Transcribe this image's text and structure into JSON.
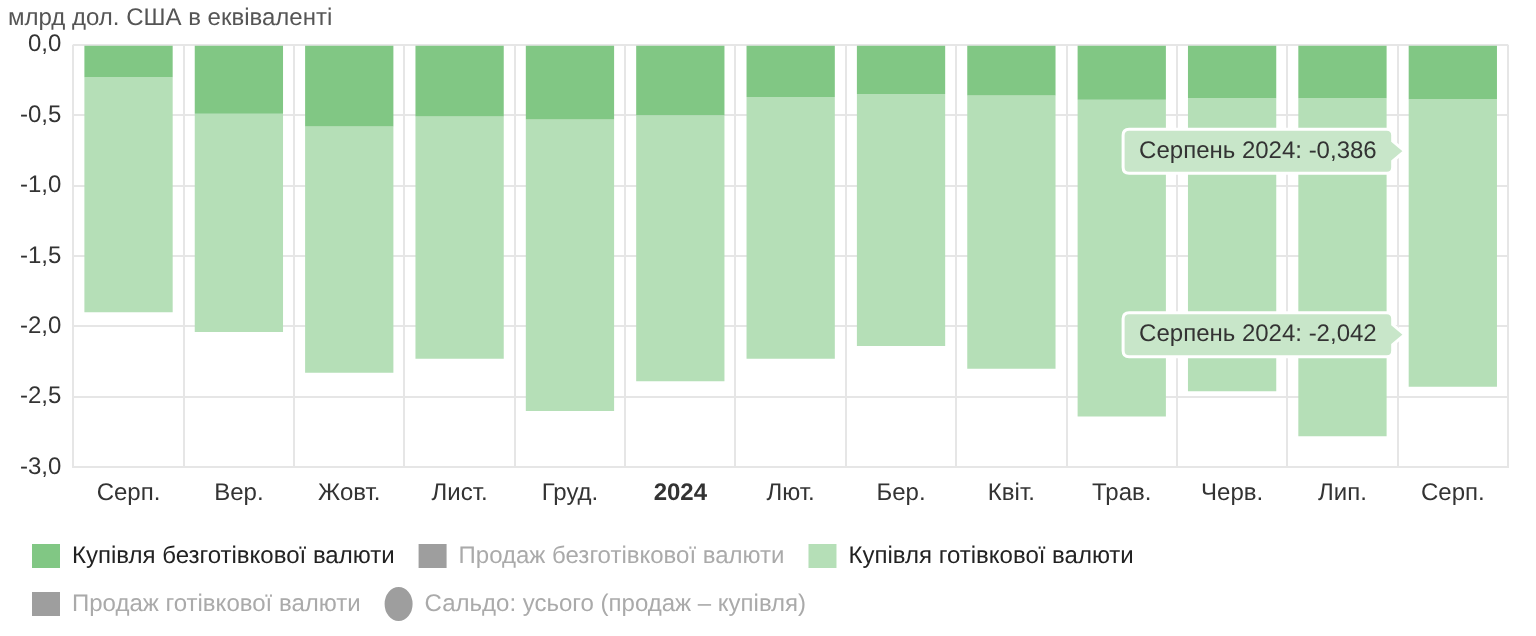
{
  "chart_data": {
    "type": "bar",
    "ylabel": "млрд дол. США в еквіваленті",
    "categories": [
      "Серп.",
      "Вер.",
      "Жовт.",
      "Лист.",
      "Груд.",
      "2024",
      "Лют.",
      "Бер.",
      "Квіт.",
      "Трав.",
      "Черв.",
      "Лип.",
      "Серп."
    ],
    "stacked": true,
    "series": [
      {
        "name": "Купівля безготівкової валюти",
        "color": "#81c784",
        "values": [
          -0.23,
          -0.49,
          -0.58,
          -0.51,
          -0.53,
          -0.5,
          -0.37,
          -0.35,
          -0.36,
          -0.39,
          -0.38,
          -0.38,
          -0.386
        ]
      },
      {
        "name": "Продаж безготівкової валюти",
        "color": "#9e9e9e",
        "values": [
          null,
          null,
          null,
          null,
          null,
          null,
          null,
          null,
          null,
          null,
          null,
          null,
          null
        ]
      },
      {
        "name": "Купівля готівкової валюти",
        "color": "#b5dfb7",
        "values": [
          -1.67,
          -1.55,
          -1.75,
          -1.72,
          -2.07,
          -1.89,
          -1.86,
          -1.79,
          -1.94,
          -2.25,
          -2.08,
          -2.4,
          -2.042
        ]
      },
      {
        "name": "Продаж готівкової валюти",
        "color": "#9e9e9e",
        "values": [
          null,
          null,
          null,
          null,
          null,
          null,
          null,
          null,
          null,
          null,
          null,
          null,
          null
        ]
      },
      {
        "name": "Сальдо: усього (продаж – купівля)",
        "type": "line",
        "color": "#9e9e9e",
        "values": [
          null,
          null,
          null,
          null,
          null,
          null,
          null,
          null,
          null,
          null,
          null,
          null,
          null
        ]
      }
    ],
    "ylim": [
      -3,
      0
    ],
    "yticks": [
      {
        "value": -3,
        "label": "-3,0"
      },
      {
        "value": -2.5,
        "label": "-2,5"
      },
      {
        "value": -2,
        "label": "-2,0"
      },
      {
        "value": -1.5,
        "label": "-1,5"
      },
      {
        "value": -1,
        "label": "-1,0"
      },
      {
        "value": -0.5,
        "label": "-0,5"
      },
      {
        "value": 0,
        "label": "0,0"
      }
    ],
    "grid": true,
    "legend": "bottom",
    "marker": "circle",
    "annotations": [
      "Серпень 2024: -0,386",
      "Серпень 2024: -2,042"
    ]
  }
}
